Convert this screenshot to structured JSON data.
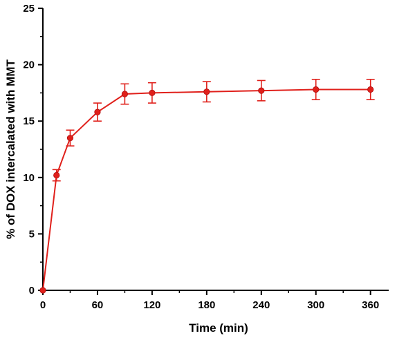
{
  "chart_data": {
    "type": "line",
    "xlabel": "Time (min)",
    "ylabel": "% of DOX intercalated with MMT",
    "xlim": [
      0,
      380
    ],
    "ylim": [
      0,
      25
    ],
    "x_ticks": [
      0,
      60,
      120,
      180,
      240,
      300,
      360
    ],
    "y_ticks": [
      0,
      5,
      10,
      15,
      20,
      25
    ],
    "grid": false,
    "legend": "none",
    "series": [
      {
        "color": "#e0201b",
        "x": [
          0,
          15,
          30,
          60,
          90,
          120,
          180,
          240,
          300,
          360
        ],
        "y": [
          0,
          10.2,
          13.5,
          15.8,
          17.4,
          17.5,
          17.6,
          17.7,
          17.8,
          17.8
        ],
        "error": [
          0,
          0.5,
          0.7,
          0.8,
          0.9,
          0.9,
          0.9,
          0.9,
          0.9,
          0.9
        ]
      }
    ]
  }
}
